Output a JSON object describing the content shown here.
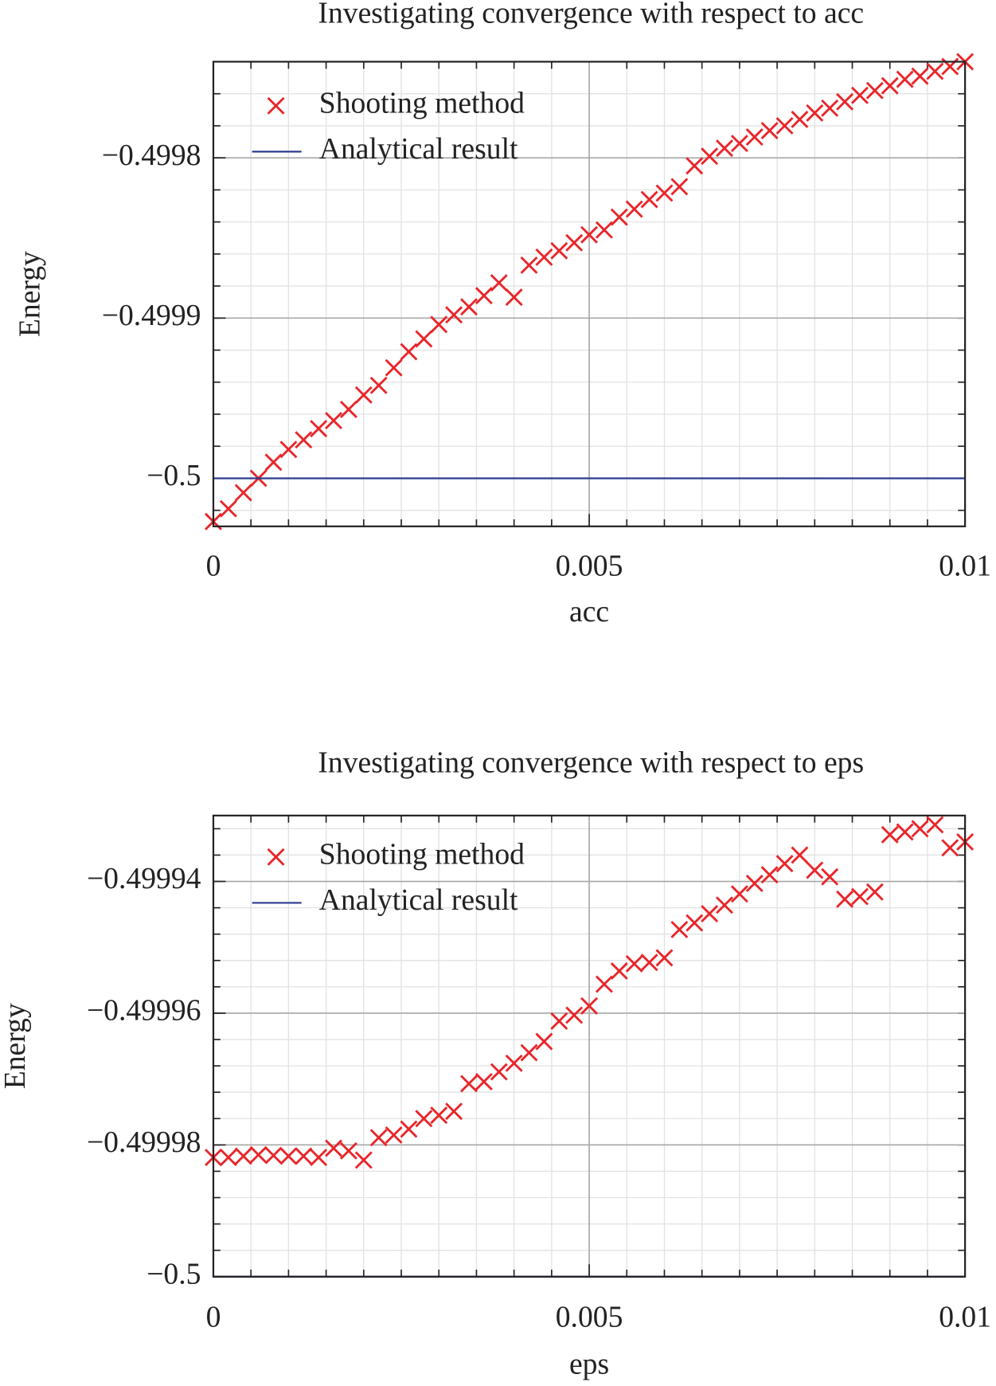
{
  "chart_data": [
    {
      "type": "scatter",
      "title": "Investigating convergence with respect to acc",
      "x_label": "acc",
      "y_label": "Energy",
      "xlim": [
        0,
        0.01
      ],
      "ylim": [
        -0.50003,
        -0.49974
      ],
      "xticks": [
        0,
        0.005,
        0.01
      ],
      "yticks": [
        {
          "value": -0.4998,
          "label": "−0.4998"
        },
        {
          "value": -0.4999,
          "label": "−0.4999"
        },
        {
          "value": -0.5,
          "label": "−0.5"
        }
      ],
      "grid": true,
      "legend": "upper left",
      "series": [
        {
          "name": "Shooting method",
          "color": "#e8262a",
          "marker": "x",
          "x": [
            0,
            0.0002,
            0.0004,
            0.0006,
            0.0008,
            0.001,
            0.0012,
            0.0014,
            0.0016,
            0.0018,
            0.002,
            0.0022,
            0.0024,
            0.0026,
            0.0028,
            0.003,
            0.0032,
            0.0034,
            0.0036,
            0.0038,
            0.004,
            0.0042,
            0.0044,
            0.0046,
            0.0048,
            0.005,
            0.0052,
            0.0054,
            0.0056,
            0.0058,
            0.006,
            0.0062,
            0.0064,
            0.0066,
            0.0068,
            0.007,
            0.0072,
            0.0074,
            0.0076,
            0.0078,
            0.008,
            0.0082,
            0.0084,
            0.0086,
            0.0088,
            0.009,
            0.0092,
            0.0094,
            0.0096,
            0.0098,
            0.01
          ],
          "values": [
            -0.500027,
            -0.500019,
            -0.500009,
            -0.5,
            -0.49999,
            -0.499982,
            -0.499976,
            -0.499969,
            -0.499964,
            -0.499957,
            -0.499948,
            -0.499942,
            -0.499931,
            -0.499921,
            -0.499913,
            -0.499904,
            -0.499898,
            -0.499893,
            -0.499886,
            -0.499878,
            -0.499887,
            -0.499867,
            -0.499862,
            -0.499858,
            -0.499853,
            -0.499848,
            -0.499845,
            -0.499837,
            -0.499832,
            -0.499826,
            -0.499822,
            -0.499818,
            -0.499805,
            -0.499799,
            -0.499794,
            -0.499791,
            -0.499787,
            -0.499783,
            -0.49978,
            -0.499776,
            -0.499772,
            -0.499769,
            -0.499765,
            -0.499761,
            -0.499758,
            -0.499755,
            -0.499751,
            -0.499749,
            -0.499746,
            -0.499743,
            -0.49974
          ]
        },
        {
          "name": "Analytical result",
          "color": "#2b3a8f",
          "marker": "line",
          "x": [
            0,
            0.01
          ],
          "values": [
            -0.5,
            -0.5
          ]
        }
      ]
    },
    {
      "type": "scatter",
      "title": "Investigating convergence with respect to eps",
      "x_label": "eps",
      "y_label": "Energy",
      "xlim": [
        0,
        0.01
      ],
      "ylim": [
        -0.5,
        -0.49993
      ],
      "xticks": [
        0,
        0.005,
        0.01
      ],
      "yticks": [
        {
          "value": -0.49994,
          "label": "−0.49994"
        },
        {
          "value": -0.49996,
          "label": "−0.49996"
        },
        {
          "value": -0.49998,
          "label": "−0.49998"
        },
        {
          "value": -0.5,
          "label": "−0.5"
        }
      ],
      "grid": true,
      "legend": "upper left",
      "series": [
        {
          "name": "Shooting method",
          "color": "#e8262a",
          "marker": "x",
          "x": [
            0,
            0.0002,
            0.0004,
            0.0006,
            0.0008,
            0.001,
            0.0012,
            0.0014,
            0.0016,
            0.0018,
            0.002,
            0.0022,
            0.0024,
            0.0026,
            0.0028,
            0.003,
            0.0032,
            0.0034,
            0.0036,
            0.0038,
            0.004,
            0.0042,
            0.0044,
            0.0046,
            0.0048,
            0.005,
            0.0052,
            0.0054,
            0.0056,
            0.0058,
            0.006,
            0.0062,
            0.0064,
            0.0066,
            0.0068,
            0.007,
            0.0072,
            0.0074,
            0.0076,
            0.0078,
            0.008,
            0.0082,
            0.0084,
            0.0086,
            0.0088,
            0.009,
            0.0092,
            0.0094,
            0.0096,
            0.0098,
            0.01
          ],
          "values": [
            -0.4999819,
            -0.4999819,
            -0.4999817,
            -0.4999815,
            -0.4999816,
            -0.4999817,
            -0.4999817,
            -0.4999819,
            -0.4999805,
            -0.4999809,
            -0.4999823,
            -0.4999789,
            -0.4999785,
            -0.4999776,
            -0.499976,
            -0.4999755,
            -0.4999749,
            -0.4999707,
            -0.4999704,
            -0.4999689,
            -0.4999676,
            -0.499966,
            -0.4999643,
            -0.4999612,
            -0.4999603,
            -0.4999589,
            -0.4999556,
            -0.4999536,
            -0.4999525,
            -0.4999523,
            -0.4999516,
            -0.4999473,
            -0.4999463,
            -0.4999449,
            -0.4999436,
            -0.4999419,
            -0.4999403,
            -0.499939,
            -0.4999373,
            -0.499936,
            -0.4999383,
            -0.4999393,
            -0.4999427,
            -0.4999423,
            -0.4999416,
            -0.4999329,
            -0.4999325,
            -0.499932,
            -0.4999314,
            -0.4999349,
            -0.499934
          ]
        },
        {
          "name": "Analytical result",
          "color": "#2b3a8f",
          "marker": "line",
          "x": [
            0,
            0.01
          ],
          "values": [
            -0.5,
            -0.5
          ]
        }
      ]
    }
  ]
}
